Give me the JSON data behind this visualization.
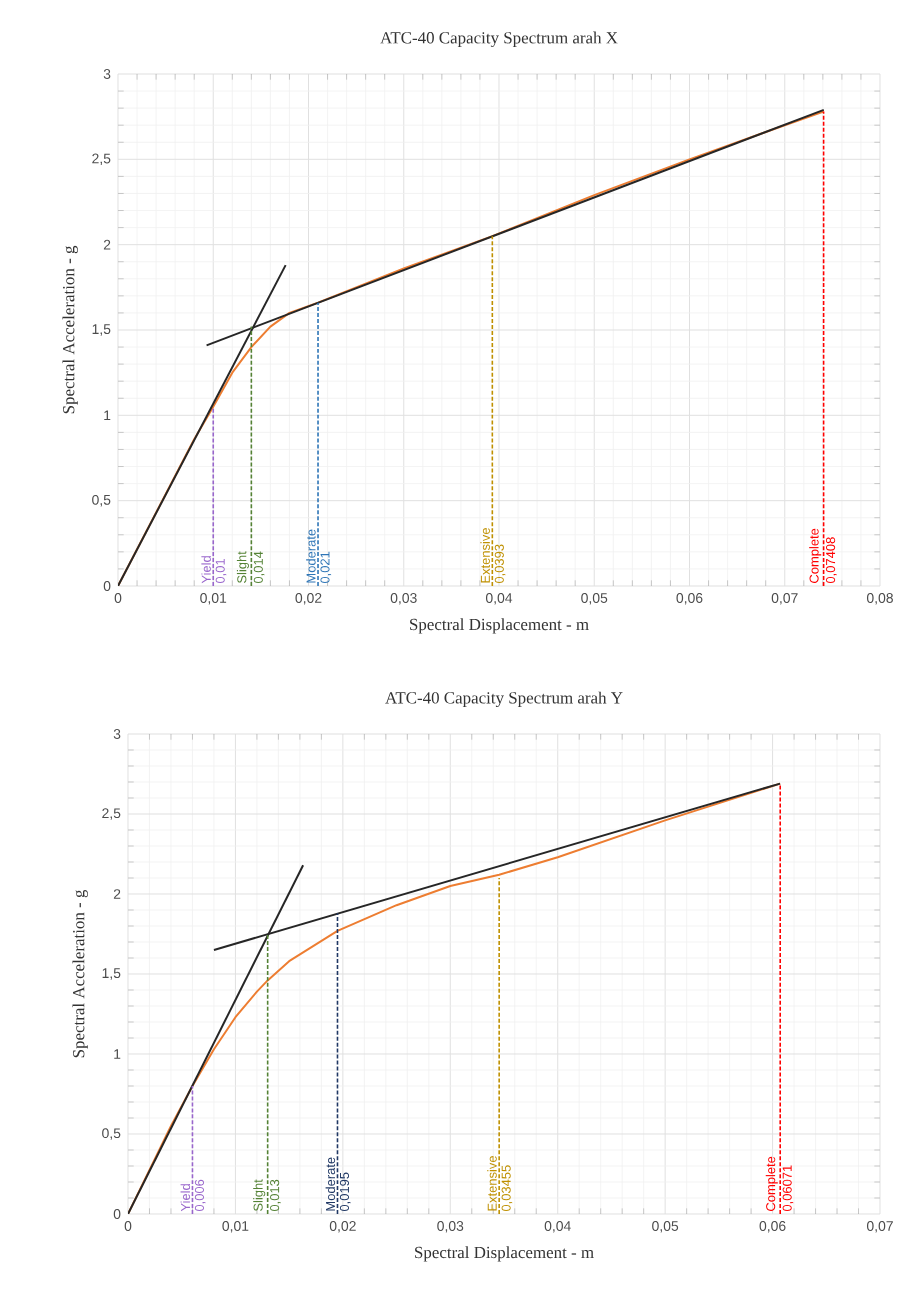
{
  "chart_data": [
    {
      "type": "line",
      "title": "ATC-40 Capacity Spectrum arah X",
      "xlabel": "Spectral Displacement - m",
      "ylabel": "Spectral Acceleration - g",
      "grid": true,
      "marker": "none",
      "xlim": [
        0,
        0.08
      ],
      "ylim": [
        0,
        3
      ],
      "xticks": [
        0,
        {
          "value": 0.01,
          "label": "0,01"
        },
        {
          "value": 0.02,
          "label": "0,02"
        },
        {
          "value": 0.03,
          "label": "0,03"
        },
        {
          "value": 0.04,
          "label": "0,04"
        },
        {
          "value": 0.05,
          "label": "0,05"
        },
        {
          "value": 0.06,
          "label": "0,06"
        },
        {
          "value": 0.07,
          "label": "0,07"
        },
        {
          "value": 0.08,
          "label": "0,08"
        }
      ],
      "yticks": [
        0,
        {
          "value": 0.5,
          "label": "0,5"
        },
        1,
        {
          "value": 1.5,
          "label": "1,5"
        },
        2,
        {
          "value": 2.5,
          "label": "2,5"
        },
        3
      ],
      "series": [
        {
          "color": "#ed7d31",
          "line_style": "solid",
          "x": [
            0,
            0.008,
            0.01,
            0.012,
            0.014,
            0.016,
            0.018,
            0.021,
            0.03,
            0.0393,
            0.05,
            0.06,
            0.07,
            0.07408
          ],
          "values": [
            0,
            0.86,
            1.05,
            1.25,
            1.4,
            1.52,
            1.6,
            1.66,
            1.86,
            2.05,
            2.29,
            2.5,
            2.7,
            2.78
          ]
        },
        {
          "color": "#262626",
          "line_style": "solid",
          "x": [
            0,
            0.0176
          ],
          "values": [
            0,
            1.88
          ]
        },
        {
          "color": "#262626",
          "line_style": "solid",
          "x": [
            0.0093,
            0.0741
          ],
          "values": [
            1.41,
            2.79
          ]
        },
        {
          "name": "Yield",
          "color": "#9966cc",
          "line_style": "dashed",
          "x": [
            0.01,
            0.01
          ],
          "values": [
            0,
            1.05
          ]
        },
        {
          "name": "Slight",
          "color": "#548235",
          "line_style": "dashed",
          "x": [
            0.014,
            0.014
          ],
          "values": [
            0,
            1.52
          ]
        },
        {
          "name": "Moderate",
          "color": "#2e75b6",
          "line_style": "dashed",
          "x": [
            0.021,
            0.021
          ],
          "values": [
            0,
            1.66
          ]
        },
        {
          "name": "Extensive",
          "color": "#bf9000",
          "line_style": "dashed",
          "x": [
            0.0393,
            0.0393
          ],
          "values": [
            0,
            2.05
          ]
        },
        {
          "name": "Complete",
          "color": "#ff0000",
          "line_style": "dashed",
          "x": [
            0.07408,
            0.07408
          ],
          "values": [
            0,
            2.78
          ]
        }
      ],
      "annotations": [
        {
          "text": "0,01",
          "x": 0.01,
          "y": 0
        },
        {
          "text": "0,014",
          "x": 0.014,
          "y": 0
        },
        {
          "text": "0,021",
          "x": 0.021,
          "y": 0
        },
        {
          "text": "0,0393",
          "x": 0.0393,
          "y": 0
        },
        {
          "text": "0,07408",
          "x": 0.07408,
          "y": 0
        }
      ]
    },
    {
      "type": "line",
      "title": "ATC-40 Capacity Spectrum arah Y",
      "xlabel": "Spectral Displacement - m",
      "ylabel": "Spectral Acceleration - g",
      "grid": true,
      "marker": "none",
      "xlim": [
        0,
        0.07
      ],
      "ylim": [
        0,
        3
      ],
      "xticks": [
        0,
        {
          "value": 0.01,
          "label": "0,01"
        },
        {
          "value": 0.02,
          "label": "0,02"
        },
        {
          "value": 0.03,
          "label": "0,03"
        },
        {
          "value": 0.04,
          "label": "0,04"
        },
        {
          "value": 0.05,
          "label": "0,05"
        },
        {
          "value": 0.06,
          "label": "0,06"
        },
        {
          "value": 0.07,
          "label": "0,07"
        }
      ],
      "yticks": [
        0,
        {
          "value": 0.5,
          "label": "0,5"
        },
        1,
        {
          "value": 1.5,
          "label": "1,5"
        },
        2,
        {
          "value": 2.5,
          "label": "2,5"
        },
        3
      ],
      "series": [
        {
          "color": "#ed7d31",
          "line_style": "solid",
          "x": [
            0,
            0.004,
            0.006,
            0.008,
            0.01,
            0.012,
            0.013,
            0.015,
            0.0195,
            0.025,
            0.03,
            0.03455,
            0.04,
            0.05,
            0.06071
          ],
          "values": [
            0,
            0.55,
            0.8,
            1.03,
            1.23,
            1.39,
            1.46,
            1.58,
            1.77,
            1.93,
            2.05,
            2.12,
            2.23,
            2.46,
            2.69
          ]
        },
        {
          "color": "#262626",
          "line_style": "solid",
          "x": [
            0,
            0.0163
          ],
          "values": [
            0,
            2.18
          ]
        },
        {
          "color": "#262626",
          "line_style": "solid",
          "x": [
            0.008,
            0.0607
          ],
          "values": [
            1.65,
            2.69
          ]
        },
        {
          "name": "Yield",
          "color": "#9966cc",
          "line_style": "dashed",
          "x": [
            0.006,
            0.006
          ],
          "values": [
            0,
            0.8
          ]
        },
        {
          "name": "Slight",
          "color": "#548235",
          "line_style": "dashed",
          "x": [
            0.013,
            0.013
          ],
          "values": [
            0,
            1.75
          ]
        },
        {
          "name": "Moderate",
          "color": "#203864",
          "line_style": "dashed",
          "x": [
            0.0195,
            0.0195
          ],
          "values": [
            0,
            1.88
          ]
        },
        {
          "name": "Extensive",
          "color": "#bf9000",
          "line_style": "dashed",
          "x": [
            0.03455,
            0.03455
          ],
          "values": [
            0,
            2.1
          ]
        },
        {
          "name": "Complete",
          "color": "#ff0000",
          "line_style": "dashed",
          "x": [
            0.06071,
            0.06071
          ],
          "values": [
            0,
            2.69
          ]
        }
      ],
      "annotations": [
        {
          "text": "0,006",
          "x": 0.006,
          "y": 0
        },
        {
          "text": "0,013",
          "x": 0.013,
          "y": 0
        },
        {
          "text": "0,0195",
          "x": 0.0195,
          "y": 0
        },
        {
          "text": "0,03455",
          "x": 0.03455,
          "y": 0
        },
        {
          "text": "0,06071",
          "x": 0.06071,
          "y": 0
        }
      ]
    }
  ]
}
